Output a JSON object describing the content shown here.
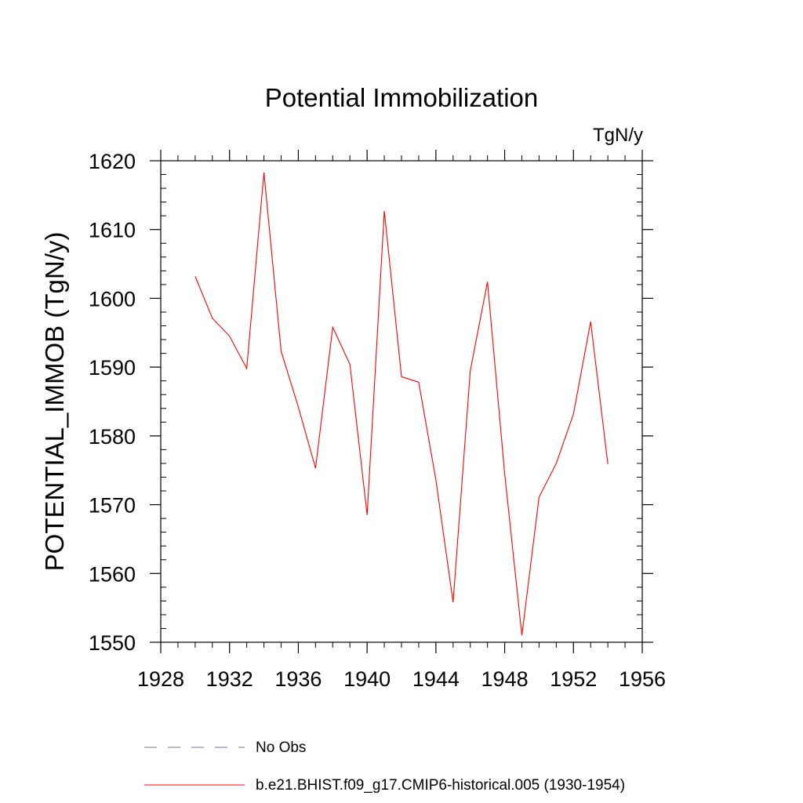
{
  "chart_data": {
    "type": "line",
    "title": "Potential Immobilization",
    "units_label": "TgN/y",
    "ylabel": "POTENTIAL_IMMOB  (TgN/y)",
    "xlabel": "",
    "xlim": [
      1928,
      1956
    ],
    "ylim": [
      1550,
      1620
    ],
    "x_ticks": [
      1928,
      1932,
      1936,
      1940,
      1944,
      1948,
      1952,
      1956
    ],
    "y_ticks": [
      1550,
      1560,
      1570,
      1580,
      1590,
      1600,
      1610,
      1620
    ],
    "grid": false,
    "legend_position": "bottom",
    "series": [
      {
        "name": "b.e21.BHIST.f09_g17.CMIP6-historical.005 (1930-1954)",
        "color": "#ff0000",
        "style": "solid",
        "x": [
          1930,
          1931,
          1932,
          1933,
          1934,
          1935,
          1936,
          1937,
          1938,
          1939,
          1940,
          1941,
          1942,
          1943,
          1944,
          1945,
          1946,
          1947,
          1948,
          1949,
          1950,
          1951,
          1952,
          1953,
          1954
        ],
        "y": [
          1603.2,
          1597.1,
          1594.5,
          1589.8,
          1618.3,
          1592.3,
          1584.2,
          1575.3,
          1595.8,
          1590.4,
          1568.5,
          1612.7,
          1588.6,
          1587.8,
          1573.6,
          1555.8,
          1589.5,
          1602.4,
          1574.5,
          1551.0,
          1571.1,
          1576.0,
          1583.2,
          1596.6,
          1575.9
        ]
      }
    ],
    "legend": [
      {
        "label": "No Obs",
        "color": "#6f6fb4",
        "style": "dashed"
      },
      {
        "label": "b.e21.BHIST.f09_g17.CMIP6-historical.005 (1930-1954)",
        "color": "#ff0000",
        "style": "solid"
      }
    ]
  }
}
